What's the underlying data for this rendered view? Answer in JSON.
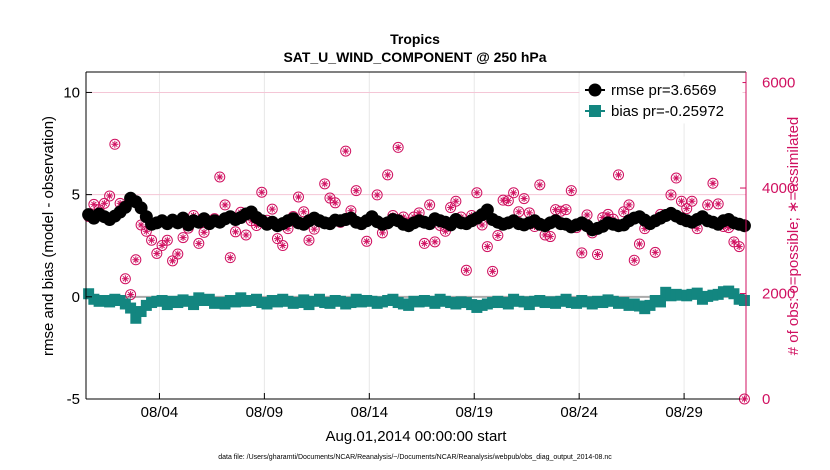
{
  "chart_data": {
    "type": "line",
    "title": "Tropics",
    "subtitle": "SAT_U_WIND_COMPONENT @ 250 hPa",
    "xlabel": "Aug.01,2014 00:00:00 start",
    "ylabel": "rmse and bias (model - observation)",
    "ylabel_right": "# of obs: o=possible; ∗=assimilated",
    "ylim": [
      -5,
      11
    ],
    "ylim_right": [
      0,
      6200
    ],
    "xlim": [
      0.5,
      31.95
    ],
    "x_tick_values": [
      4,
      9,
      14,
      19,
      24,
      29
    ],
    "x_tick_labels": [
      "08/04",
      "08/09",
      "08/14",
      "08/19",
      "08/24",
      "08/29"
    ],
    "y_tick_labels": [
      "-5",
      "0",
      "5",
      "10"
    ],
    "y_tick_values": [
      -5,
      0,
      5,
      10
    ],
    "y_right_tick_labels": [
      "0",
      "2000",
      "4000",
      "6000"
    ],
    "y_right_tick_values": [
      0,
      2000,
      4000,
      6000
    ],
    "grid": true,
    "legend_position": "top-right",
    "x": [
      0.625,
      0.875,
      1.125,
      1.375,
      1.625,
      1.875,
      2.125,
      2.375,
      2.625,
      2.875,
      3.125,
      3.375,
      3.625,
      3.875,
      4.125,
      4.375,
      4.625,
      4.875,
      5.125,
      5.375,
      5.625,
      5.875,
      6.125,
      6.375,
      6.625,
      6.875,
      7.125,
      7.375,
      7.625,
      7.875,
      8.125,
      8.375,
      8.625,
      8.875,
      9.125,
      9.375,
      9.625,
      9.875,
      10.125,
      10.375,
      10.625,
      10.875,
      11.125,
      11.375,
      11.625,
      11.875,
      12.125,
      12.375,
      12.625,
      12.875,
      13.125,
      13.375,
      13.625,
      13.875,
      14.125,
      14.375,
      14.625,
      14.875,
      15.125,
      15.375,
      15.625,
      15.875,
      16.125,
      16.375,
      16.625,
      16.875,
      17.125,
      17.375,
      17.625,
      17.875,
      18.125,
      18.375,
      18.625,
      18.875,
      19.125,
      19.375,
      19.625,
      19.875,
      20.125,
      20.375,
      20.625,
      20.875,
      21.125,
      21.375,
      21.625,
      21.875,
      22.125,
      22.375,
      22.625,
      22.875,
      23.125,
      23.375,
      23.625,
      23.875,
      24.125,
      24.375,
      24.625,
      24.875,
      25.125,
      25.375,
      25.625,
      25.875,
      26.125,
      26.375,
      26.625,
      26.875,
      27.125,
      27.375,
      27.625,
      27.875,
      28.125,
      28.375,
      28.625,
      28.875,
      29.125,
      29.375,
      29.625,
      29.875,
      30.125,
      30.375,
      30.625,
      30.875,
      31.125,
      31.375,
      31.625,
      31.875
    ],
    "series": [
      {
        "name": "rmse pr=3.6569",
        "axis": "left",
        "color": "#000000",
        "marker": "circle",
        "values": [
          4.02,
          3.85,
          4.05,
          3.92,
          3.78,
          3.95,
          4.15,
          4.38,
          4.82,
          4.65,
          4.35,
          3.92,
          3.55,
          3.62,
          3.72,
          3.58,
          3.75,
          3.62,
          3.85,
          3.52,
          3.72,
          3.65,
          3.82,
          3.58,
          3.72,
          3.65,
          3.82,
          3.92,
          3.78,
          3.88,
          4.05,
          4.15,
          3.88,
          3.72,
          3.55,
          3.65,
          3.48,
          3.58,
          3.72,
          3.82,
          3.62,
          3.55,
          3.72,
          3.85,
          3.72,
          3.62,
          3.58,
          3.75,
          3.72,
          3.78,
          3.85,
          3.65,
          3.58,
          3.72,
          3.92,
          3.68,
          3.55,
          3.62,
          3.78,
          3.72,
          3.55,
          3.48,
          3.62,
          3.72,
          3.65,
          3.58,
          3.82,
          3.72,
          3.65,
          3.52,
          3.78,
          3.62,
          3.58,
          3.72,
          3.85,
          4.02,
          4.25,
          3.78,
          3.65,
          3.55,
          3.62,
          3.72,
          3.58,
          3.52,
          3.62,
          3.72,
          3.55,
          3.48,
          3.62,
          3.72,
          3.58,
          3.55,
          3.42,
          3.52,
          3.62,
          3.48,
          3.28,
          3.35,
          3.45,
          3.62,
          3.55,
          3.48,
          3.52,
          3.72,
          3.85,
          3.92,
          3.75,
          3.58,
          3.72,
          3.85,
          3.98,
          4.08,
          3.95,
          3.82,
          3.72,
          3.65,
          3.78,
          3.92,
          3.72,
          3.65,
          3.55,
          3.72,
          3.78,
          3.62,
          3.55,
          3.48
        ]
      },
      {
        "name": "bias pr=-0.25972",
        "axis": "left",
        "color": "#138680",
        "marker": "square",
        "values": [
          0.15,
          -0.12,
          -0.22,
          -0.18,
          -0.25,
          -0.12,
          -0.18,
          -0.35,
          -0.55,
          -1.05,
          -0.72,
          -0.42,
          -0.28,
          -0.22,
          -0.18,
          -0.38,
          -0.22,
          -0.28,
          -0.15,
          -0.22,
          -0.38,
          -0.05,
          -0.18,
          -0.12,
          -0.32,
          -0.28,
          -0.35,
          -0.18,
          -0.25,
          -0.05,
          -0.22,
          -0.18,
          -0.12,
          -0.28,
          -0.35,
          -0.18,
          -0.25,
          -0.12,
          -0.22,
          -0.32,
          -0.28,
          -0.15,
          -0.38,
          -0.22,
          -0.12,
          -0.28,
          -0.32,
          -0.18,
          -0.22,
          -0.35,
          -0.28,
          -0.12,
          -0.25,
          -0.18,
          -0.22,
          -0.32,
          -0.25,
          -0.18,
          -0.12,
          -0.28,
          -0.35,
          -0.42,
          -0.22,
          -0.25,
          -0.18,
          -0.22,
          -0.32,
          -0.12,
          -0.22,
          -0.28,
          -0.35,
          -0.25,
          -0.28,
          -0.38,
          -0.52,
          -0.42,
          -0.35,
          -0.28,
          -0.22,
          -0.28,
          -0.35,
          -0.12,
          -0.22,
          -0.25,
          -0.38,
          -0.22,
          -0.18,
          -0.28,
          -0.25,
          -0.32,
          -0.22,
          -0.12,
          -0.28,
          -0.32,
          -0.18,
          -0.25,
          -0.35,
          -0.22,
          -0.28,
          -0.15,
          -0.22,
          -0.32,
          -0.28,
          -0.42,
          -0.35,
          -0.45,
          -0.58,
          -0.42,
          -0.18,
          -0.25,
          0.22,
          0.05,
          0.12,
          0.08,
          0.05,
          0.12,
          0.18,
          -0.12,
          0.02,
          0.08,
          0.12,
          0.25,
          0.28,
          0.15,
          -0.12,
          -0.18
        ]
      },
      {
        "name": "# of obs possible (o)",
        "axis": "right",
        "color": "#d01060",
        "marker": "circle-open",
        "values": [
          3460,
          3690,
          3590,
          3710,
          3850,
          4830,
          3710,
          2280,
          1980,
          2640,
          3300,
          3180,
          3010,
          2760,
          2910,
          3010,
          2620,
          2750,
          3060,
          3240,
          3480,
          2950,
          3160,
          3380,
          3420,
          4210,
          3680,
          2680,
          3170,
          3540,
          3110,
          3380,
          3290,
          3920,
          3390,
          3600,
          3040,
          2910,
          3230,
          3460,
          3830,
          3550,
          3010,
          3220,
          3360,
          4080,
          3810,
          3720,
          3350,
          4700,
          3570,
          3950,
          3310,
          2990,
          3420,
          3870,
          3150,
          4250,
          3480,
          4770,
          3450,
          3340,
          3450,
          3530,
          2950,
          3680,
          2980,
          3290,
          3180,
          3630,
          3750,
          3450,
          2440,
          3480,
          3910,
          3300,
          2890,
          2420,
          3100,
          3770,
          3760,
          3910,
          3550,
          3800,
          3530,
          3270,
          4060,
          3110,
          3080,
          3590,
          3560,
          3590,
          3950,
          3250,
          2770,
          3490,
          3150,
          2740,
          3440,
          3500,
          3410,
          4250,
          3550,
          3680,
          2630,
          2940,
          3230,
          3320,
          2780,
          3500,
          3470,
          3870,
          4190,
          3750,
          3610,
          3750,
          3230,
          3430,
          3680,
          4090,
          3700,
          3270,
          3250,
          2980,
          2890,
          0
        ]
      }
    ]
  },
  "footer": "data file: /Users/gharamti/Documents/NCAR/Reanalysis/~/Documents/NCAR/Reanalysis/webpub/obs_diag_output_2014-08.nc"
}
